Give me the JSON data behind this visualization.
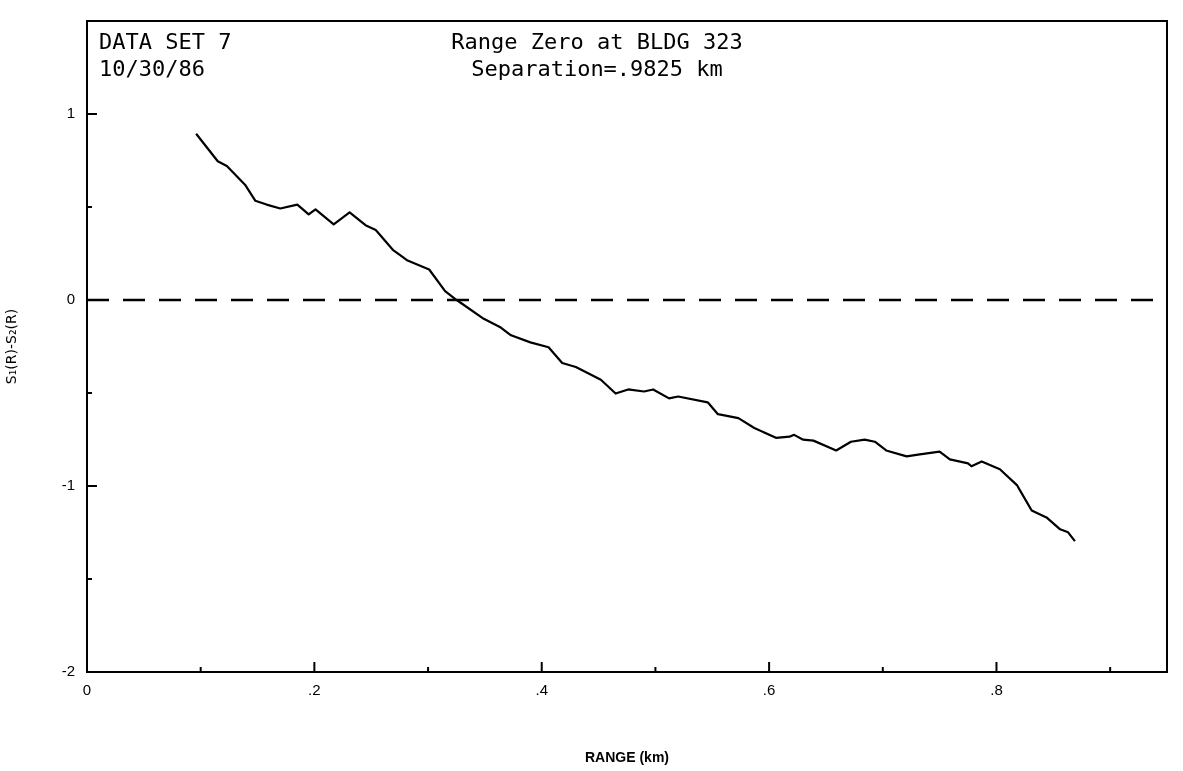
{
  "chart_data": {
    "type": "line",
    "title": "Range Zero at BLDG 323",
    "subtitle": "Separation=.9825 km",
    "annotations": [
      "DATA SET 7",
      "10/30/86"
    ],
    "xlabel": "RANGE (km)",
    "ylabel": "S₁(R)-S₂(R)",
    "xlim": [
      0,
      0.95
    ],
    "ylim": [
      -2,
      1.5
    ],
    "xticks": [
      0,
      {
        "value": 0.1,
        "label": null
      },
      {
        "value": 0.2,
        "label": ".2"
      },
      {
        "value": 0.3,
        "label": null
      },
      {
        "value": 0.4,
        "label": ".4"
      },
      {
        "value": 0.5,
        "label": null
      },
      {
        "value": 0.6,
        "label": ".6"
      },
      {
        "value": 0.7,
        "label": null
      },
      {
        "value": 0.8,
        "label": ".8"
      },
      {
        "value": 0.9,
        "label": null
      }
    ],
    "yticks": [
      -2,
      {
        "value": -1.5,
        "label": null
      },
      -1,
      {
        "value": -0.5,
        "label": null
      },
      0,
      {
        "value": 0.5,
        "label": null
      },
      1
    ],
    "grid": false,
    "legend": false,
    "marker": "none",
    "line_style": "solid",
    "ref_lines": [
      {
        "axis": "y",
        "value": 0,
        "color": "#000000",
        "line_style": "dashed"
      }
    ],
    "series": [
      {
        "color": "#000000",
        "x": [
          0.096,
          0.115,
          0.123,
          0.139,
          0.148,
          0.158,
          0.17,
          0.185,
          0.195,
          0.201,
          0.217,
          0.231,
          0.245,
          0.254,
          0.269,
          0.282,
          0.301,
          0.315,
          0.324,
          0.329,
          0.349,
          0.364,
          0.373,
          0.39,
          0.406,
          0.418,
          0.43,
          0.452,
          0.465,
          0.476,
          0.49,
          0.498,
          0.512,
          0.52,
          0.546,
          0.555,
          0.573,
          0.587,
          0.606,
          0.618,
          0.622,
          0.63,
          0.639,
          0.659,
          0.672,
          0.684,
          0.693,
          0.703,
          0.721,
          0.731,
          0.75,
          0.759,
          0.775,
          0.778,
          0.787,
          0.803,
          0.818,
          0.831,
          0.844,
          0.856,
          0.863,
          0.869
        ],
        "values": [
          0.894,
          0.746,
          0.72,
          0.62,
          0.534,
          0.513,
          0.492,
          0.513,
          0.46,
          0.487,
          0.407,
          0.471,
          0.402,
          0.376,
          0.27,
          0.212,
          0.164,
          0.048,
          0.005,
          -0.016,
          -0.101,
          -0.148,
          -0.19,
          -0.228,
          -0.254,
          -0.339,
          -0.36,
          -0.429,
          -0.503,
          -0.481,
          -0.492,
          -0.481,
          -0.529,
          -0.519,
          -0.55,
          -0.614,
          -0.635,
          -0.688,
          -0.741,
          -0.735,
          -0.725,
          -0.751,
          -0.756,
          -0.809,
          -0.762,
          -0.751,
          -0.762,
          -0.809,
          -0.841,
          -0.831,
          -0.815,
          -0.857,
          -0.878,
          -0.894,
          -0.868,
          -0.91,
          -0.995,
          -1.132,
          -1.169,
          -1.233,
          -1.249,
          -1.296
        ]
      }
    ]
  }
}
